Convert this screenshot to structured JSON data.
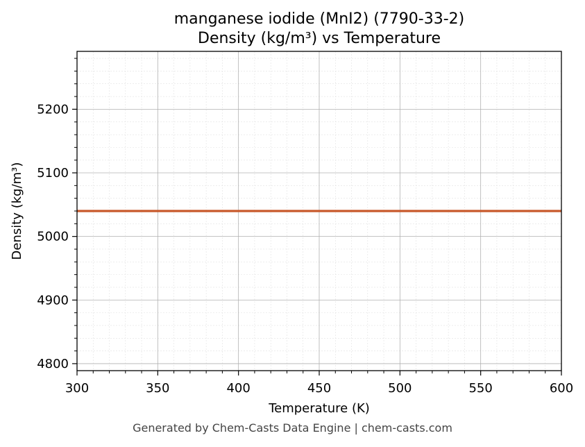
{
  "chart_data": {
    "type": "line",
    "title_line1": "manganese iodide (MnI2) (7790-33-2)",
    "title_line2": "Density (kg/m³) vs Temperature",
    "xlabel": "Temperature (K)",
    "ylabel": "Density (kg/m³)",
    "xlim": [
      300,
      600
    ],
    "ylim": [
      4789,
      5291
    ],
    "xticks": [
      300,
      350,
      400,
      450,
      500,
      550,
      600
    ],
    "yticks": [
      4800,
      4900,
      5000,
      5100,
      5200
    ],
    "grid": true,
    "series": [
      {
        "x": [
          300,
          600
        ],
        "y": [
          5040,
          5040
        ],
        "color": "#c8582a"
      }
    ]
  },
  "footer": "Generated by Chem-Casts Data Engine | chem-casts.com"
}
